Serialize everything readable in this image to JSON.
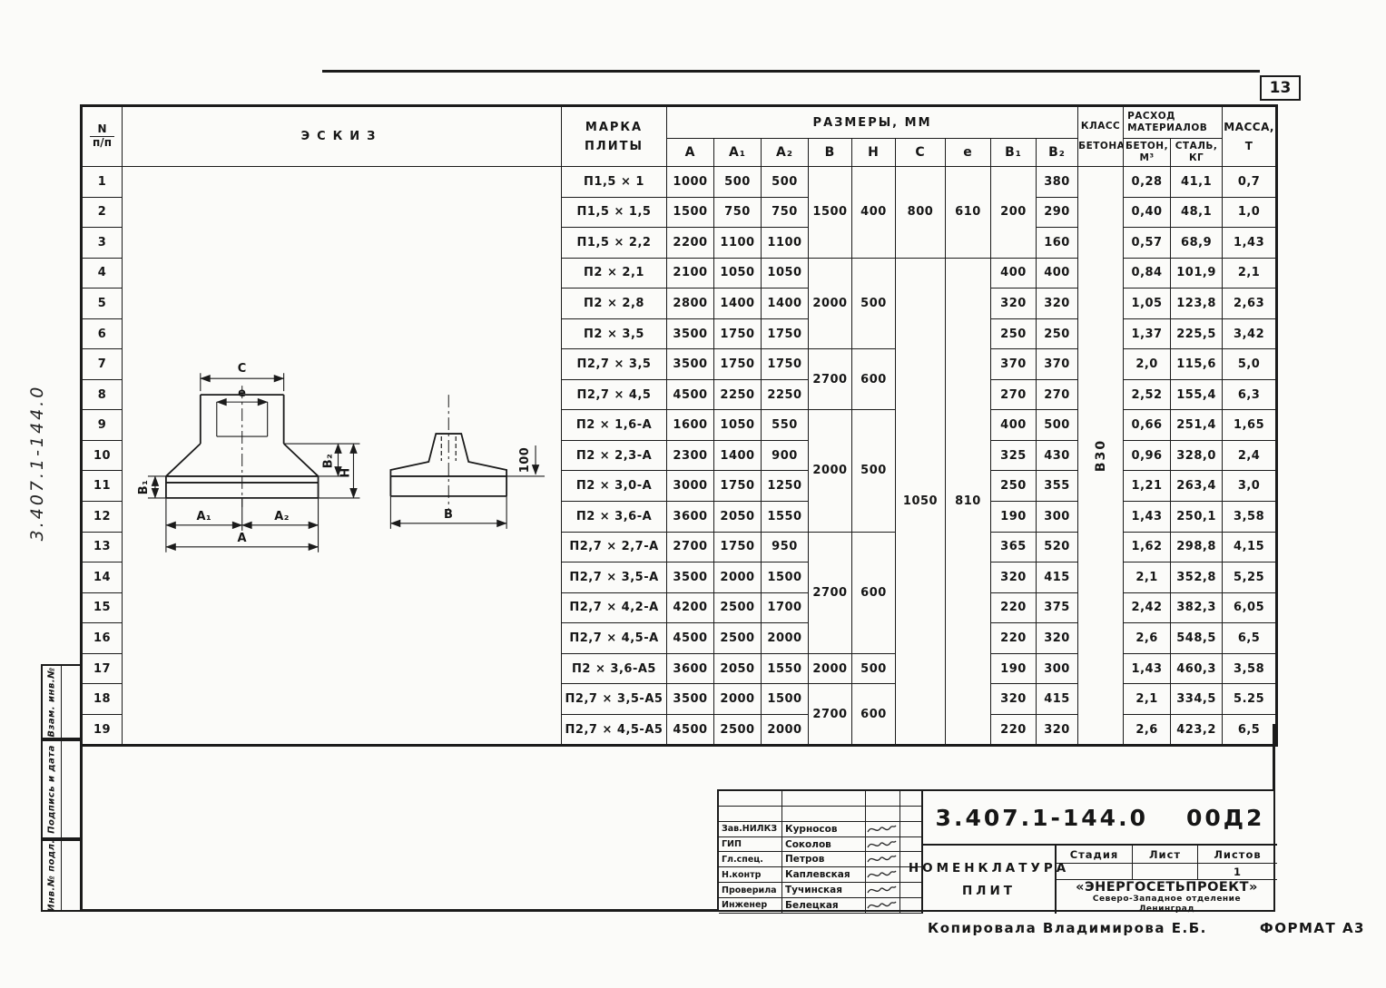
{
  "page": {
    "sheet_number": "13",
    "side_doc_number": "3.407.1-144.0",
    "copied_by": "Копировала  Владимирова Е.Б.",
    "format": "ФОРМАТ А3"
  },
  "stamps": {
    "vzam": "Взам. инв.№",
    "podpis": "Подпись и дата",
    "inv": "Инв.№ подл."
  },
  "sketch": {
    "c": "С",
    "e": "е",
    "b1": "В₁",
    "b2": "В₂",
    "h": "Н",
    "a1": "А₁",
    "a2": "А₂",
    "a": "А",
    "b": "В",
    "hundred": "100"
  },
  "table": {
    "header": {
      "num_top": "N",
      "num_bottom": "п/п",
      "sketch": "ЭСКИЗ",
      "mark1": "МАРКА",
      "mark2": "ПЛИТЫ",
      "sizes": "РАЗМЕРЫ,  ММ",
      "dims": [
        "А",
        "А₁",
        "А₂",
        "В",
        "Н",
        "С",
        "е",
        "В₁",
        "В₂"
      ],
      "class1": "КЛАСС",
      "class2": "БЕТОНА",
      "consumption1": "РАСХОД",
      "consumption2": "МАТЕРИАЛОВ",
      "concrete1": "БЕТОН,",
      "concrete2": "М³",
      "steel1": "СТАЛЬ,",
      "steel2": "КГ",
      "mass1": "МАССА,",
      "mass2": "Т"
    },
    "rows": [
      [
        "1",
        {
          "type": "sketch",
          "rs": 19
        },
        {
          "t": "П1,5 × 1",
          "cls": "mark"
        },
        "1000",
        "500",
        "500",
        {
          "t": "1500",
          "rs": 3
        },
        {
          "t": "400",
          "rs": 3
        },
        {
          "t": "800",
          "rs": 3
        },
        {
          "t": "610",
          "rs": 3
        },
        {
          "t": "200",
          "rs": 3
        },
        "380",
        {
          "t": "В30",
          "rs": 19,
          "type": "vert"
        },
        "0,28",
        "41,1",
        "0,7"
      ],
      [
        "2",
        {
          "t": "П1,5 × 1,5",
          "cls": "mark"
        },
        "1500",
        "750",
        "750",
        "290",
        "0,40",
        "48,1",
        "1,0"
      ],
      [
        "3",
        {
          "t": "П1,5 × 2,2",
          "cls": "mark"
        },
        "2200",
        "1100",
        "1100",
        "160",
        "0,57",
        "68,9",
        "1,43"
      ],
      [
        "4",
        {
          "t": "П2 × 2,1",
          "cls": "mark"
        },
        "2100",
        "1050",
        "1050",
        {
          "t": "2000",
          "rs": 3
        },
        {
          "t": "500",
          "rs": 3
        },
        {
          "t": "1050",
          "rs": 16
        },
        {
          "t": "810",
          "rs": 16
        },
        "400",
        "400",
        "0,84",
        "101,9",
        "2,1"
      ],
      [
        "5",
        {
          "t": "П2 × 2,8",
          "cls": "mark"
        },
        "2800",
        "1400",
        "1400",
        "320",
        "320",
        "1,05",
        "123,8",
        "2,63"
      ],
      [
        "6",
        {
          "t": "П2 × 3,5",
          "cls": "mark"
        },
        "3500",
        "1750",
        "1750",
        "250",
        "250",
        "1,37",
        "225,5",
        "3,42"
      ],
      [
        "7",
        {
          "t": "П2,7 × 3,5",
          "cls": "mark"
        },
        "3500",
        "1750",
        "1750",
        {
          "t": "2700",
          "rs": 2
        },
        {
          "t": "600",
          "rs": 2
        },
        "370",
        "370",
        "2,0",
        "115,6",
        "5,0"
      ],
      [
        "8",
        {
          "t": "П2,7 × 4,5",
          "cls": "mark"
        },
        "4500",
        "2250",
        "2250",
        "270",
        "270",
        "2,52",
        "155,4",
        "6,3"
      ],
      [
        "9",
        {
          "t": "П2 × 1,6-А",
          "cls": "mark"
        },
        "1600",
        "1050",
        "550",
        {
          "t": "2000",
          "rs": 4
        },
        {
          "t": "500",
          "rs": 4
        },
        "400",
        "500",
        "0,66",
        "251,4",
        "1,65"
      ],
      [
        "10",
        {
          "t": "П2 × 2,3-А",
          "cls": "mark"
        },
        "2300",
        "1400",
        "900",
        "325",
        "430",
        "0,96",
        "328,0",
        "2,4"
      ],
      [
        "11",
        {
          "t": "П2 × 3,0-А",
          "cls": "mark"
        },
        "3000",
        "1750",
        "1250",
        "250",
        "355",
        "1,21",
        "263,4",
        "3,0"
      ],
      [
        "12",
        {
          "t": "П2 × 3,6-А",
          "cls": "mark"
        },
        "3600",
        "2050",
        "1550",
        "190",
        "300",
        "1,43",
        "250,1",
        "3,58"
      ],
      [
        "13",
        {
          "t": "П2,7 × 2,7-А",
          "cls": "mark"
        },
        "2700",
        "1750",
        "950",
        {
          "t": "2700",
          "rs": 4
        },
        {
          "t": "600",
          "rs": 4
        },
        "365",
        "520",
        "1,62",
        "298,8",
        "4,15"
      ],
      [
        "14",
        {
          "t": "П2,7 × 3,5-А",
          "cls": "mark"
        },
        "3500",
        "2000",
        "1500",
        "320",
        "415",
        "2,1",
        "352,8",
        "5,25"
      ],
      [
        "15",
        {
          "t": "П2,7 × 4,2-А",
          "cls": "mark"
        },
        "4200",
        "2500",
        "1700",
        "220",
        "375",
        "2,42",
        "382,3",
        "6,05"
      ],
      [
        "16",
        {
          "t": "П2,7 × 4,5-А",
          "cls": "mark"
        },
        "4500",
        "2500",
        "2000",
        "220",
        "320",
        "2,6",
        "548,5",
        "6,5"
      ],
      [
        "17",
        {
          "t": "П2 × 3,6-А5",
          "cls": "mark"
        },
        "3600",
        "2050",
        "1550",
        "2000",
        "500",
        "190",
        "300",
        "1,43",
        "460,3",
        "3,58"
      ],
      [
        "18",
        {
          "t": "П2,7 × 3,5-А5",
          "cls": "mark"
        },
        "3500",
        "2000",
        "1500",
        {
          "t": "2700",
          "rs": 2
        },
        {
          "t": "600",
          "rs": 2
        },
        "320",
        "415",
        "2,1",
        "334,5",
        "5.25"
      ],
      [
        "19",
        {
          "t": "П2,7 × 4,5-А5",
          "cls": "mark"
        },
        "4500",
        "2500",
        "2000",
        "220",
        "320",
        "2,6",
        "423,2",
        "6,5"
      ]
    ]
  },
  "title_block": {
    "doc_number": "3.407.1-144.0",
    "doc_suffix": "00Д2",
    "title_line1": "НОМЕНКЛАТУРА",
    "title_line2": "ПЛИТ",
    "stage_label": "Стадия",
    "sheet_label": "Лист",
    "sheets_label": "Листов",
    "sheets_value": "1",
    "org_line1": "«ЭНЕРГОСЕТЬПРОЕКТ»",
    "org_line2": "Северо-Западное отделение",
    "org_line3": "Ленинград",
    "people": [
      {
        "role": "Зав.НИЛКЗ",
        "name": "Курносов"
      },
      {
        "role": "ГИП",
        "name": "Соколов"
      },
      {
        "role": "Гл.спец.",
        "name": "Петров"
      },
      {
        "role": "Н.контр",
        "name": "Каплевская"
      },
      {
        "role": "Проверила",
        "name": "Тучинская"
      },
      {
        "role": "Инженер",
        "name": "Белецкая"
      }
    ]
  }
}
